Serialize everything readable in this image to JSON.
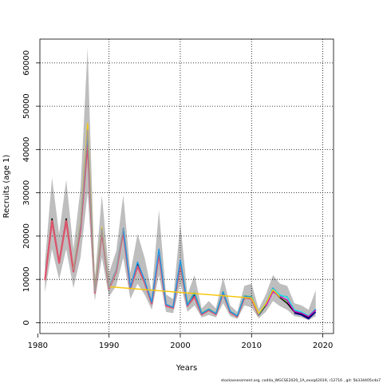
{
  "chart_data": {
    "type": "line",
    "xlabel": "Years",
    "ylabel": "Recruits (age 1)",
    "footer": "stockassessment.org, cod4a_WGCSE2020_1A_exxq42019, r12716 , git: 5b334405cda7",
    "xlim": [
      1980.3,
      2021.5
    ],
    "ylim": [
      -2500,
      65500
    ],
    "x_ticks": [
      1980,
      1990,
      2000,
      2010,
      2020
    ],
    "y_ticks": [
      0,
      10000,
      20000,
      30000,
      40000,
      50000,
      60000
    ],
    "grid": true,
    "band_color": "#bebebe",
    "series": [
      {
        "color": "#000000",
        "x": [
          1981,
          1982,
          1983,
          1984,
          1985,
          1986,
          1987,
          1988,
          1989,
          1990,
          1991,
          1992,
          1993,
          1994,
          1995,
          1996,
          1997,
          1998,
          1999,
          2000,
          2001,
          2002,
          2003,
          2004,
          2005,
          2006,
          2007,
          2008,
          2009,
          2010,
          2011,
          2012,
          2013,
          2014,
          2015,
          2016,
          2017,
          2018,
          2019
        ],
        "values": [
          10000,
          24000,
          14000,
          24000,
          12000,
          22000,
          43000,
          7000,
          21500,
          8000,
          12000,
          21500,
          8000,
          13500,
          9500,
          4500,
          16500,
          4000,
          3500,
          14000,
          4000,
          6500,
          2000,
          3000,
          2000,
          7000,
          2500,
          1500,
          6000,
          5800,
          1800,
          4000,
          7500,
          5800,
          4500,
          2500,
          2000,
          1200,
          3000
        ],
        "lower": [
          7000,
          17000,
          10000,
          17000,
          8000,
          15000,
          30000,
          5000,
          15000,
          6000,
          8500,
          15000,
          5500,
          9000,
          6500,
          3000,
          11000,
          2500,
          2200,
          9000,
          2500,
          4000,
          1200,
          1800,
          1200,
          4500,
          1500,
          900,
          4000,
          3500,
          1000,
          2500,
          5000,
          3800,
          3000,
          1500,
          1200,
          600,
          1500
        ],
        "upper": [
          14000,
          33500,
          20500,
          33000,
          17000,
          31000,
          63500,
          10000,
          29500,
          11500,
          16500,
          29500,
          11500,
          20500,
          15000,
          7000,
          26000,
          6500,
          5500,
          23000,
          6500,
          11000,
          3300,
          5000,
          3300,
          10500,
          4000,
          2500,
          8500,
          9000,
          3200,
          6500,
          11000,
          9000,
          8500,
          4500,
          4000,
          3000,
          7500
        ]
      },
      {
        "color": "#df536b",
        "x": [
          1981,
          1982,
          1983,
          1984,
          1985,
          1986,
          1987,
          1988,
          1989,
          1990,
          1991,
          1992,
          1993,
          1994,
          1995,
          1996,
          1997,
          1998,
          1999,
          2000,
          2001,
          2002,
          2003,
          2004,
          2005,
          2006,
          2007,
          2008,
          2009,
          2010,
          2011
        ],
        "values": [
          9800,
          23500,
          13800,
          23500,
          11800,
          21500,
          41500,
          6900,
          21000,
          7900,
          11800,
          21000,
          7900,
          13000,
          9300,
          4400,
          16000,
          3900,
          3400,
          13500,
          3900,
          6000,
          1900,
          2900,
          1900,
          6900,
          2400,
          1400,
          5800,
          5500,
          1700
        ]
      },
      {
        "color": "#61d04f",
        "x": [
          2000,
          2001,
          2002,
          2003,
          2004,
          2005,
          2006,
          2007,
          2008,
          2009,
          2010,
          2011,
          2012,
          2013,
          2014,
          2015
        ],
        "values": [
          14200,
          4300,
          7000,
          2200,
          3200,
          2100,
          7200,
          2600,
          1600,
          6200,
          6000,
          2000,
          4200,
          7800,
          6000,
          4800
        ]
      },
      {
        "color": "#2297e6",
        "x": [
          1985,
          1986,
          1987,
          1988,
          1989,
          1990,
          1991,
          1992,
          1993,
          1994,
          1995,
          1996,
          1997,
          1998,
          1999,
          2000,
          2001,
          2002,
          2003,
          2004,
          2005,
          2006,
          2007,
          2008,
          2009,
          2010,
          2011,
          2012,
          2013,
          2014,
          2015,
          2016,
          2017,
          2018,
          2019
        ],
        "values": [
          12300,
          22500,
          44000,
          7200,
          21800,
          8200,
          12200,
          21800,
          8200,
          14000,
          9800,
          4700,
          17000,
          4200,
          3600,
          14500,
          4100,
          6800,
          2100,
          3100,
          2100,
          7100,
          2600,
          1600,
          6100,
          5900,
          1900,
          4300,
          8000,
          6200,
          6000,
          2800,
          2400,
          1500,
          3100
        ]
      },
      {
        "color": "#28e2e5",
        "x": [
          2011,
          2012,
          2013,
          2014,
          2015,
          2016,
          2017,
          2018,
          2019
        ],
        "values": [
          2000,
          4500,
          7800,
          6400,
          5900,
          3000,
          2500,
          1600,
          3200
        ]
      },
      {
        "color": "#cd0bbc",
        "x": [
          2012,
          2013,
          2014,
          2015,
          2016,
          2017,
          2018,
          2019
        ],
        "values": [
          3800,
          7200,
          6000,
          5200,
          2600,
          2200,
          1400,
          3000
        ]
      },
      {
        "color": "#f5c710",
        "x": [
          1985,
          1986,
          1987,
          1988,
          1989,
          1990,
          2010,
          2011,
          2012,
          2013,
          2014
        ],
        "values": [
          12500,
          23000,
          46000,
          7300,
          22000,
          8300,
          5700,
          2100,
          4400,
          7600,
          5900
        ]
      },
      {
        "color": "#9e9e9e",
        "x": [
          1985,
          1986,
          1987,
          1988,
          1989,
          1990,
          1991,
          1992
        ],
        "values": [
          12200,
          22800,
          44500,
          7100,
          21700,
          8100,
          12100,
          21700
        ]
      },
      {
        "color": "#000099",
        "x": [
          2016,
          2017,
          2018,
          2019
        ],
        "values": [
          2200,
          1800,
          900,
          2500
        ]
      }
    ]
  }
}
